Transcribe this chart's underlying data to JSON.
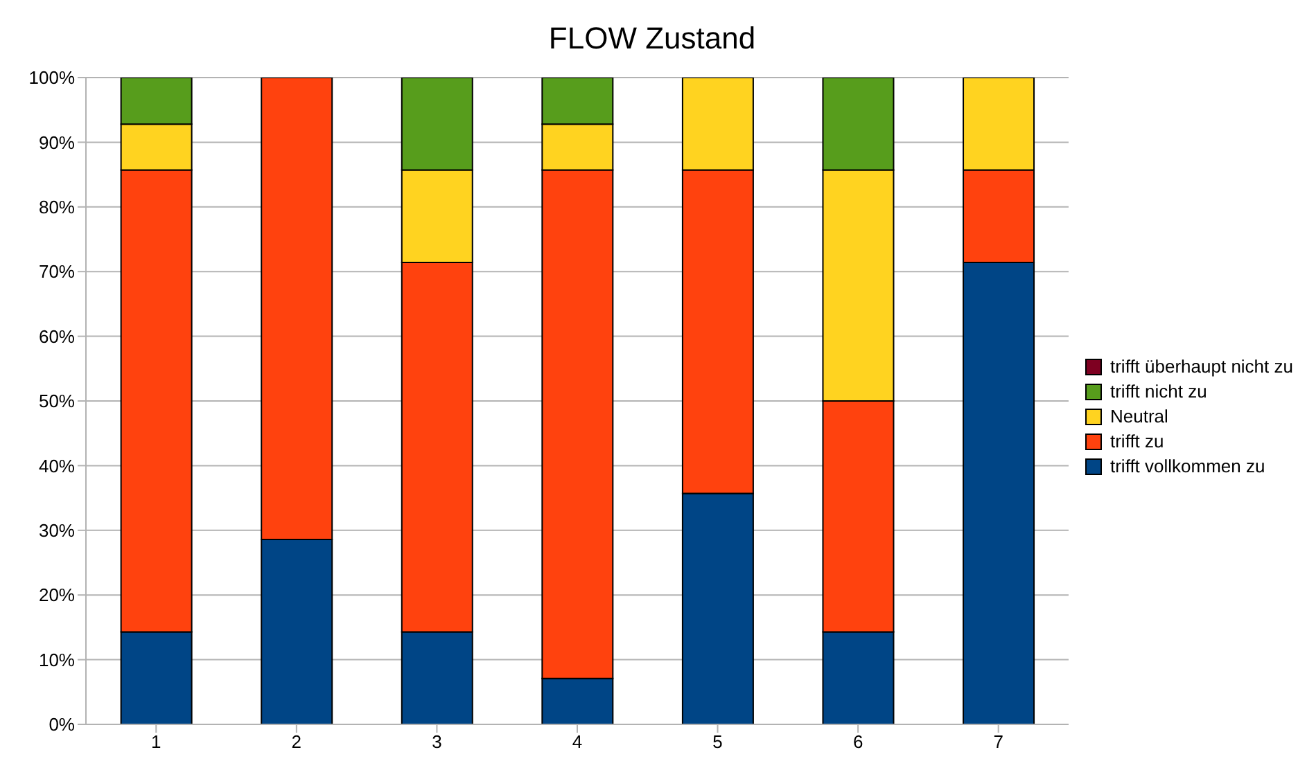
{
  "chart_data": {
    "type": "bar",
    "title": "FLOW Zustand",
    "stacked": true,
    "categories": [
      "1",
      "2",
      "3",
      "4",
      "5",
      "6",
      "7"
    ],
    "series": [
      {
        "name": "trifft vollkommen zu",
        "color": "#004586",
        "values": [
          14.3,
          28.6,
          14.3,
          7.1,
          35.7,
          14.3,
          71.4
        ]
      },
      {
        "name": "trifft zu",
        "color": "#ff420e",
        "values": [
          71.4,
          71.4,
          57.1,
          78.6,
          50,
          35.7,
          14.3
        ]
      },
      {
        "name": "Neutral",
        "color": "#ffd320",
        "values": [
          7.1,
          0,
          14.3,
          7.1,
          14.3,
          35.7,
          14.3
        ]
      },
      {
        "name": "trifft nicht zu",
        "color": "#579d1c",
        "values": [
          7.2,
          0,
          14.3,
          7.2,
          0,
          14.3,
          0
        ]
      },
      {
        "name": "trifft überhaupt nicht zu",
        "color": "#7e0021",
        "values": [
          0,
          0,
          0,
          0,
          0,
          0,
          0
        ]
      }
    ],
    "ylim": [
      0,
      100
    ],
    "yticks": [
      {
        "value": 0,
        "label": "0%"
      },
      {
        "value": 10,
        "label": "10%"
      },
      {
        "value": 20,
        "label": "20%"
      },
      {
        "value": 30,
        "label": "30%"
      },
      {
        "value": 40,
        "label": "40%"
      },
      {
        "value": 50,
        "label": "50%"
      },
      {
        "value": 60,
        "label": "60%"
      },
      {
        "value": 70,
        "label": "70%"
      },
      {
        "value": 80,
        "label": "80%"
      },
      {
        "value": 90,
        "label": "90%"
      },
      {
        "value": 100,
        "label": "100%"
      }
    ],
    "grid": "y",
    "legend": "right"
  }
}
